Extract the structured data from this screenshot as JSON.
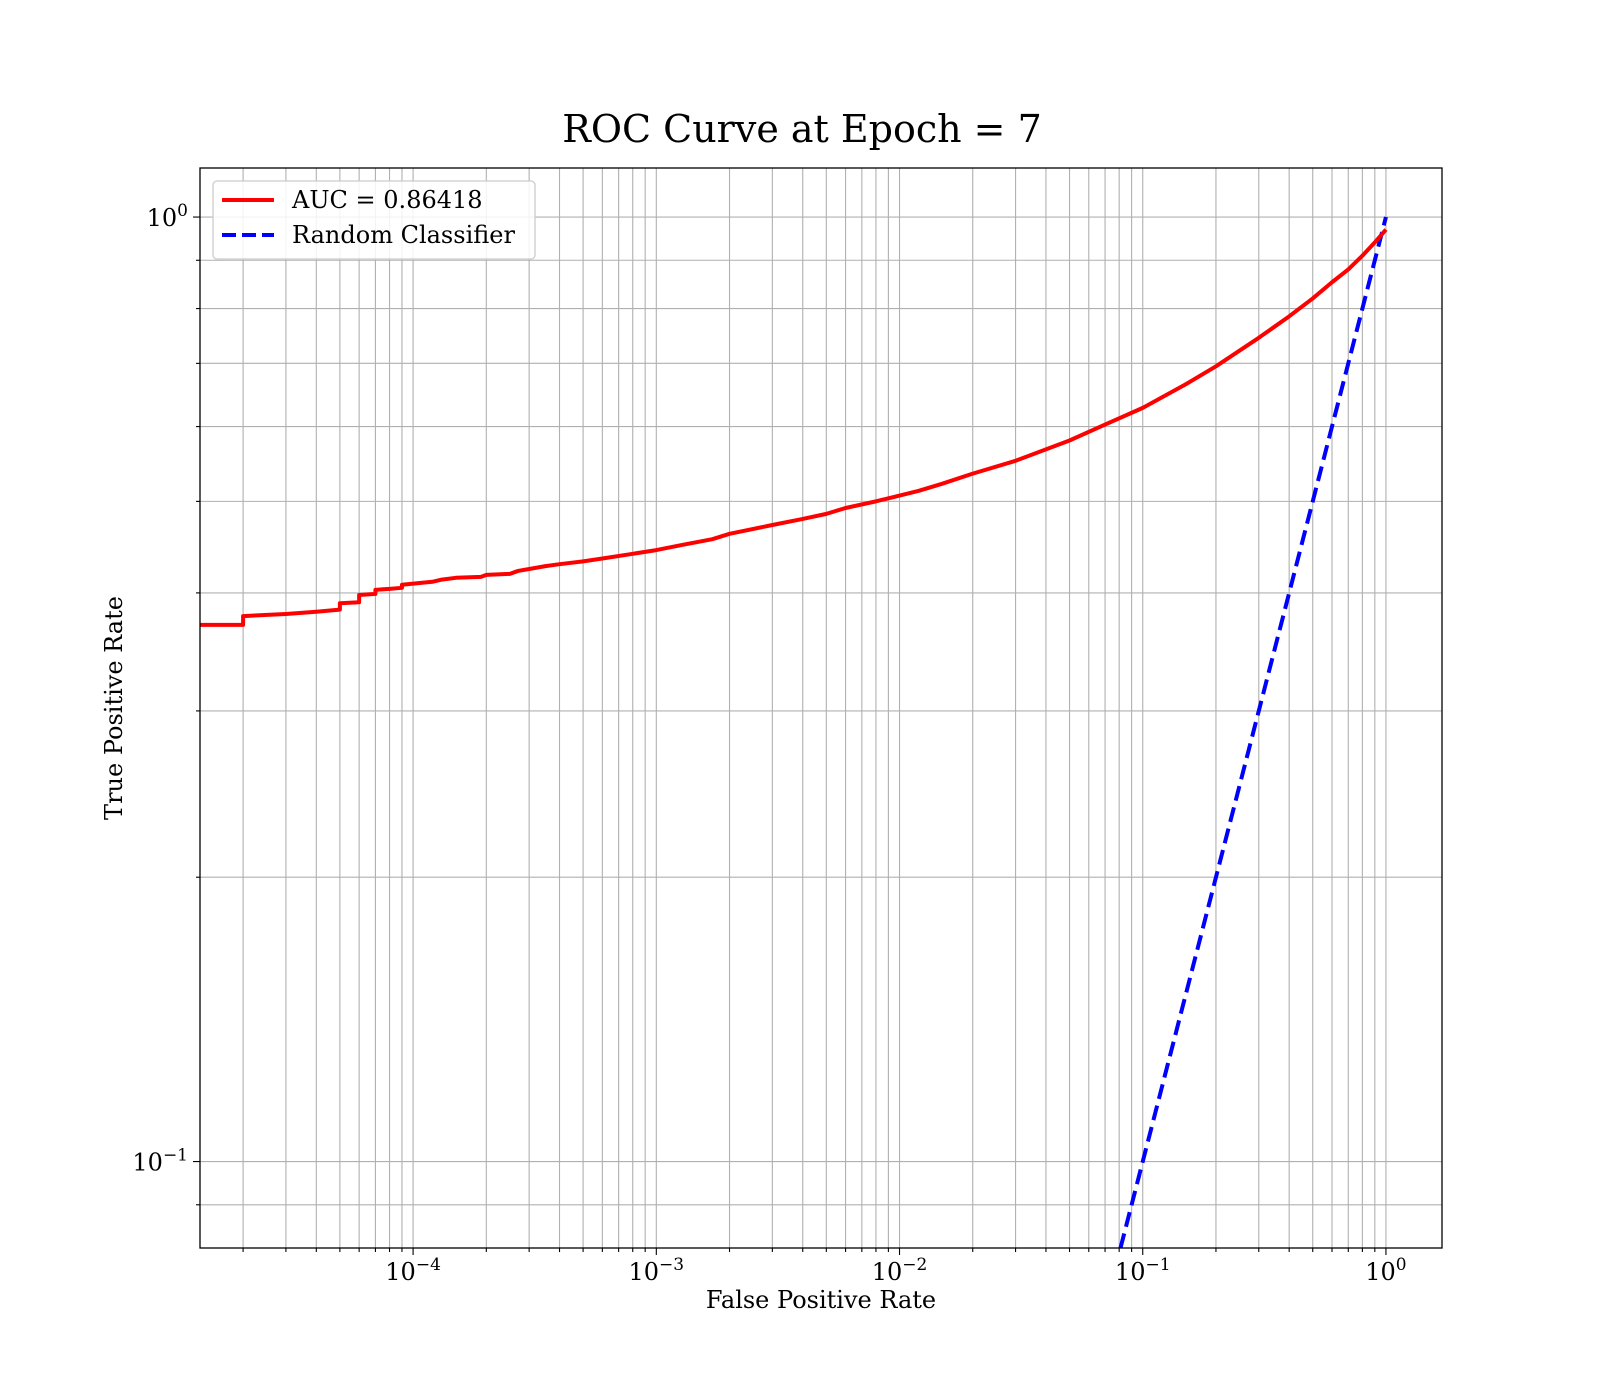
{
  "chart_data": {
    "type": "line",
    "title": "ROC Curve at Epoch = 7",
    "xlabel": "False Positive Rate",
    "ylabel": "True Positive Rate",
    "xscale": "log",
    "yscale": "log",
    "xlim": [
      1.33e-05,
      1.7
    ],
    "ylim": [
      0.081,
      1.127
    ],
    "grid": "major and minor",
    "legend_placement": "top-left",
    "x_ticks": [
      {
        "value": 0.0001,
        "base": "10",
        "exp": "−4"
      },
      {
        "value": 0.001,
        "base": "10",
        "exp": "−3"
      },
      {
        "value": 0.01,
        "base": "10",
        "exp": "−2"
      },
      {
        "value": 0.1,
        "base": "10",
        "exp": "−1"
      },
      {
        "value": 1,
        "base": "10",
        "exp": "0"
      }
    ],
    "y_ticks": [
      {
        "value": 0.1,
        "base": "10",
        "exp": "−1"
      },
      {
        "value": 1,
        "base": "10",
        "exp": "0"
      }
    ],
    "series": [
      {
        "name": "AUC = 0.86418",
        "color": "#ff0000",
        "dash": "solid",
        "x": [
          1.33e-05,
          2e-05,
          2e-05,
          3e-05,
          4e-05,
          5e-05,
          5e-05,
          6e-05,
          6e-05,
          7e-05,
          7e-05,
          8e-05,
          9e-05,
          9e-05,
          0.00012,
          0.00013,
          0.00015,
          0.00019,
          0.0002,
          0.00025,
          0.00027,
          0.0003,
          0.00035,
          0.0004,
          0.0005,
          0.0006,
          0.0008,
          0.001,
          0.0013,
          0.0017,
          0.002,
          0.003,
          0.004,
          0.005,
          0.006,
          0.008,
          0.012,
          0.015,
          0.02,
          0.03,
          0.05,
          0.07,
          0.1,
          0.15,
          0.2,
          0.3,
          0.4,
          0.5,
          0.6,
          0.7,
          0.8,
          0.9,
          1.0
        ],
        "y": [
          0.37,
          0.37,
          0.378,
          0.38,
          0.382,
          0.384,
          0.39,
          0.391,
          0.398,
          0.399,
          0.403,
          0.404,
          0.405,
          0.408,
          0.411,
          0.413,
          0.415,
          0.416,
          0.418,
          0.419,
          0.422,
          0.424,
          0.427,
          0.429,
          0.432,
          0.435,
          0.44,
          0.444,
          0.45,
          0.456,
          0.462,
          0.472,
          0.479,
          0.485,
          0.492,
          0.5,
          0.513,
          0.522,
          0.535,
          0.552,
          0.58,
          0.603,
          0.628,
          0.665,
          0.695,
          0.745,
          0.785,
          0.82,
          0.853,
          0.88,
          0.91,
          0.94,
          0.97
        ]
      },
      {
        "name": "Random Classifier",
        "color": "#0000ff",
        "dash": "dashed",
        "x": [
          0.081,
          1.0
        ],
        "y": [
          0.081,
          1.0
        ]
      }
    ]
  }
}
